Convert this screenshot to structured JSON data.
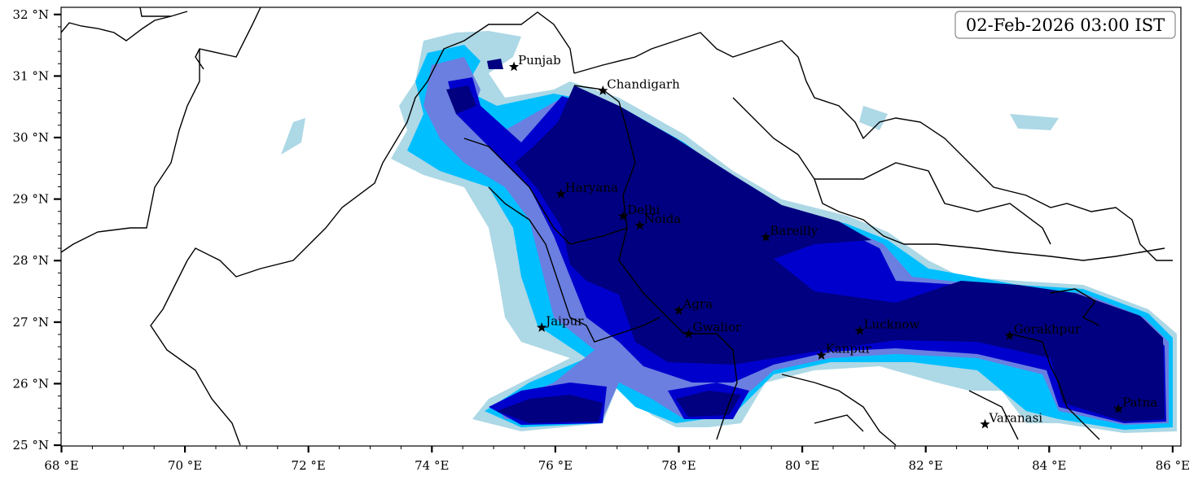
{
  "map": {
    "timestamp": "02-Feb-2026 03:00 IST",
    "lon_range": [
      68,
      86.15
    ],
    "lat_range": [
      25,
      32.1
    ],
    "x_ticks": [
      {
        "value": 68,
        "label": "68 °E"
      },
      {
        "value": 70,
        "label": "70 °E"
      },
      {
        "value": 72,
        "label": "72 °E"
      },
      {
        "value": 74,
        "label": "74 °E"
      },
      {
        "value": 76,
        "label": "76 °E"
      },
      {
        "value": 78,
        "label": "78 °E"
      },
      {
        "value": 80,
        "label": "80 °E"
      },
      {
        "value": 82,
        "label": "82 °E"
      },
      {
        "value": 84,
        "label": "84 °E"
      },
      {
        "value": 86,
        "label": "86 °E"
      }
    ],
    "y_ticks": [
      {
        "value": 25,
        "label": "25 °N"
      },
      {
        "value": 26,
        "label": "26 °N"
      },
      {
        "value": 27,
        "label": "27 °N"
      },
      {
        "value": 28,
        "label": "28 °N"
      },
      {
        "value": 29,
        "label": "29 °N"
      },
      {
        "value": 30,
        "label": "30 °N"
      },
      {
        "value": 31,
        "label": "31 °N"
      },
      {
        "value": 32,
        "label": "32 °N"
      }
    ],
    "cities": [
      {
        "name": "Punjab",
        "lon": 75.33,
        "lat": 31.15
      },
      {
        "name": "Chandigarh",
        "lon": 76.77,
        "lat": 30.76
      },
      {
        "name": "Haryana",
        "lon": 76.09,
        "lat": 29.08
      },
      {
        "name": "Delhi",
        "lon": 77.1,
        "lat": 28.72
      },
      {
        "name": "Noida",
        "lon": 77.37,
        "lat": 28.57
      },
      {
        "name": "Bareilly",
        "lon": 79.41,
        "lat": 28.38
      },
      {
        "name": "Agra",
        "lon": 78.0,
        "lat": 27.19
      },
      {
        "name": "Jaipur",
        "lon": 75.78,
        "lat": 26.91
      },
      {
        "name": "Gwalior",
        "lon": 78.16,
        "lat": 26.81
      },
      {
        "name": "Lucknow",
        "lon": 80.93,
        "lat": 26.86
      },
      {
        "name": "Gorakhpur",
        "lon": 83.36,
        "lat": 26.78
      },
      {
        "name": "Kanpur",
        "lon": 80.31,
        "lat": 26.46
      },
      {
        "name": "Varanasi",
        "lon": 82.96,
        "lat": 25.34
      },
      {
        "name": "Patna",
        "lon": 85.12,
        "lat": 25.59
      }
    ],
    "colors": {
      "level1": "#add8e6",
      "level2": "#00bfff",
      "level3": "#6a7fe0",
      "level4": "#0000cd",
      "level5": "#000080"
    }
  }
}
